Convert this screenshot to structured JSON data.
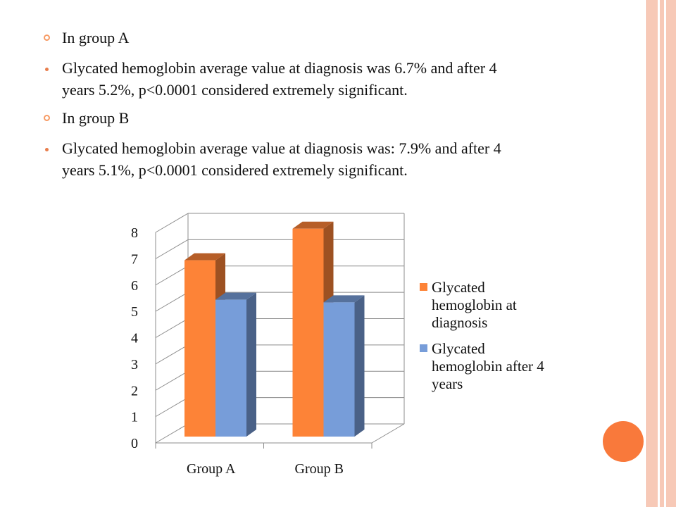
{
  "slide": {
    "bullets": [
      {
        "level": 1,
        "lines": [
          "In group A"
        ]
      },
      {
        "level": 2,
        "lines": [
          "Glycated hemoglobin average value at diagnosis was 6.7% and after 4",
          "years 5.2%, p<0.0001 considered extremely significant."
        ]
      },
      {
        "level": 1,
        "lines": [
          "In group B"
        ]
      },
      {
        "level": 2,
        "lines": [
          "Glycated hemoglobin average value at diagnosis was: 7.9% and after 4",
          "years 5.1%, p<0.0001 considered extremely significant."
        ]
      }
    ],
    "colors": {
      "accent": "#f9793b",
      "stripe": "#f7c9b7"
    }
  },
  "chart_data": {
    "type": "bar",
    "variant": "3d-clustered-column",
    "categories": [
      "Group A",
      "Group B"
    ],
    "series": [
      {
        "name": "Glycated hemoglobin at diagnosis",
        "legend_lines": [
          "Glycated",
          "hemoglobin at",
          "diagnosis"
        ],
        "values": [
          6.7,
          7.9
        ],
        "color": "#fd8337"
      },
      {
        "name": "Glycated hemoglobin after 4 years",
        "legend_lines": [
          "Glycated",
          "hemoglobin after 4",
          "years"
        ],
        "values": [
          5.2,
          5.1
        ],
        "color": "#779dd9"
      }
    ],
    "y_ticks": [
      "0",
      "1",
      "2",
      "3",
      "4",
      "5",
      "6",
      "7",
      "8"
    ],
    "ylim": [
      0,
      8
    ],
    "grid": true,
    "legend_position": "right",
    "title": "",
    "xlabel": "",
    "ylabel": ""
  }
}
